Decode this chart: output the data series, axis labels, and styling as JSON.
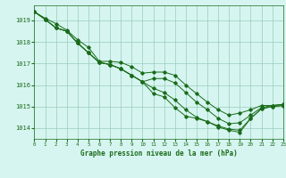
{
  "title": "Graphe pression niveau de la mer (hPa)",
  "bg_color": "#d6f5f0",
  "grid_color": "#99ccbb",
  "line_color": "#1a6b1a",
  "xlim": [
    0,
    23
  ],
  "ylim": [
    1013.5,
    1019.7
  ],
  "yticks": [
    1014,
    1015,
    1016,
    1017,
    1018,
    1019
  ],
  "xticks": [
    0,
    1,
    2,
    3,
    4,
    5,
    6,
    7,
    8,
    9,
    10,
    11,
    12,
    13,
    14,
    15,
    16,
    17,
    18,
    19,
    20,
    21,
    22,
    23
  ],
  "series": [
    [
      1019.4,
      1019.1,
      1018.85,
      1018.55,
      1018.1,
      1017.75,
      1017.1,
      1017.1,
      1017.05,
      1016.85,
      1016.55,
      1016.6,
      1016.6,
      1016.45,
      1016.0,
      1015.6,
      1015.2,
      1014.85,
      1014.6,
      1014.7,
      1014.85,
      1015.05,
      1015.05,
      1015.1
    ],
    [
      1019.4,
      1019.05,
      1018.65,
      1018.5,
      1017.95,
      1017.5,
      1017.05,
      1016.95,
      1016.75,
      1016.45,
      1016.15,
      1016.3,
      1016.3,
      1016.1,
      1015.65,
      1015.2,
      1014.85,
      1014.45,
      1014.2,
      1014.25,
      1014.6,
      1014.95,
      1015.05,
      1015.1
    ],
    [
      1019.4,
      1019.05,
      1018.65,
      1018.5,
      1017.95,
      1017.5,
      1017.05,
      1016.95,
      1016.75,
      1016.45,
      1016.15,
      1015.85,
      1015.65,
      1015.3,
      1014.85,
      1014.5,
      1014.3,
      1014.1,
      1013.95,
      1013.9,
      1014.45,
      1014.9,
      1015.0,
      1015.05
    ],
    [
      1019.4,
      1019.05,
      1018.65,
      1018.5,
      1017.95,
      1017.5,
      1017.05,
      1016.95,
      1016.75,
      1016.45,
      1016.15,
      1015.6,
      1015.45,
      1014.95,
      1014.55,
      1014.45,
      1014.3,
      1014.05,
      1013.9,
      1013.8,
      1014.45,
      1014.9,
      1015.0,
      1015.05
    ]
  ]
}
